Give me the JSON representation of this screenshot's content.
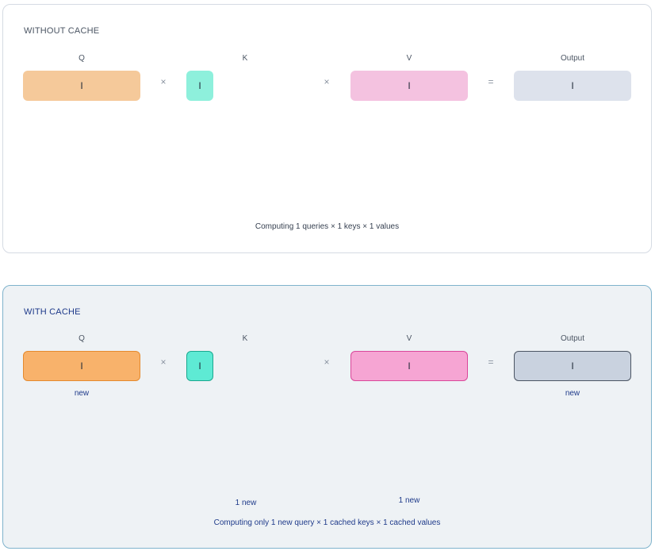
{
  "without_cache": {
    "title": "WITHOUT CACHE",
    "labels": {
      "q": "Q",
      "k": "K",
      "v": "V",
      "output": "Output"
    },
    "operators": {
      "times1": "×",
      "times2": "×",
      "equals": "="
    },
    "cells": {
      "q": "I",
      "k": "I",
      "v": "I",
      "output": "I"
    },
    "caption": "Computing 1 queries × 1 keys × 1 values"
  },
  "with_cache": {
    "title": "WITH CACHE",
    "labels": {
      "q": "Q",
      "k": "K",
      "v": "V",
      "output": "Output"
    },
    "operators": {
      "times1": "×",
      "times2": "×",
      "equals": "="
    },
    "cells": {
      "q": "I",
      "k": "I",
      "v": "I",
      "output": "I"
    },
    "notes": {
      "q_new": "new",
      "output_new": "new",
      "k_new": "1 new",
      "v_new": "1 new"
    },
    "caption": "Computing only 1 new query × 1 cached keys × 1 cached values"
  },
  "colors": {
    "q": "#f8b26b",
    "k": "#5eead4",
    "v": "#f6a5d3",
    "output": "#c9d2df",
    "accent": "#1e3a8a"
  }
}
